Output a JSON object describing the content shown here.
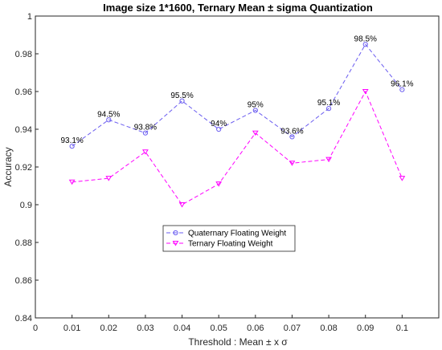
{
  "chart_data": {
    "type": "line",
    "title": "Image size 1*1600, Ternary Mean ± sigma Quantization",
    "xlabel": "Threshold : Mean ± x σ",
    "ylabel": "Accuracy",
    "x": [
      0.01,
      0.02,
      0.03,
      0.04,
      0.05,
      0.06,
      0.07,
      0.08,
      0.09,
      0.1
    ],
    "xlim": [
      0,
      0.11
    ],
    "ylim": [
      0.84,
      1.0
    ],
    "xticks": [
      "0",
      "0.01",
      "0.02",
      "0.03",
      "0.04",
      "0.05",
      "0.06",
      "0.07",
      "0.08",
      "0.09",
      "0.1"
    ],
    "yticks": [
      "0.84",
      "0.86",
      "0.88",
      "0.9",
      "0.92",
      "0.94",
      "0.96",
      "0.98",
      "1"
    ],
    "grid": false,
    "legend_placement": "center",
    "series": [
      {
        "name": "Quaternary Floating Weight",
        "color": "#6a5cf0",
        "marker": "circle",
        "values": [
          0.931,
          0.945,
          0.938,
          0.955,
          0.94,
          0.95,
          0.936,
          0.951,
          0.985,
          0.961
        ],
        "labels": [
          "93.1%",
          "94.5%",
          "93.8%",
          "95.5%",
          "94%",
          "95%",
          "93.6%",
          "95.1%",
          "98.5%",
          "96.1%"
        ]
      },
      {
        "name": "Ternary Floating Weight",
        "color": "#ff00ff",
        "marker": "triangle-down",
        "values": [
          0.912,
          0.914,
          0.928,
          0.9,
          0.911,
          0.938,
          0.922,
          0.924,
          0.96,
          0.914
        ]
      }
    ]
  }
}
